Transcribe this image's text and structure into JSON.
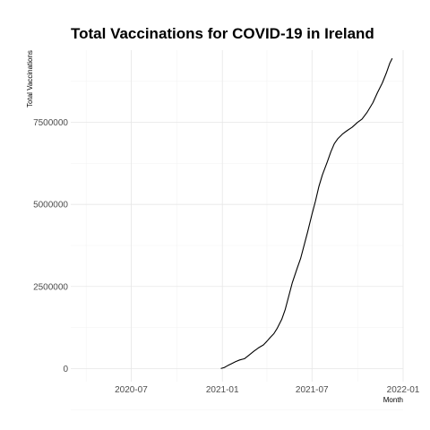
{
  "chart_data": {
    "type": "line",
    "title": "Total Vaccinations for COVID-19 in Ireland",
    "xlabel": "Month",
    "ylabel": "Total Vaccinations",
    "xlim": [
      "2020-03-01",
      "2022-01-01"
    ],
    "ylim": [
      -400000,
      9700000
    ],
    "x_ticks": [
      "2020-07",
      "2021-01",
      "2021-07",
      "2022-01"
    ],
    "y_ticks": [
      "0",
      "2500000",
      "5000000",
      "7500000"
    ],
    "grid": true,
    "series": [
      {
        "x": [
          "2020-12-29",
          "2021-01-05",
          "2021-01-12",
          "2021-01-20",
          "2021-01-28",
          "2021-02-05",
          "2021-02-15",
          "2021-02-25",
          "2021-03-05",
          "2021-03-15",
          "2021-03-25",
          "2021-04-01",
          "2021-04-08",
          "2021-04-15",
          "2021-04-22",
          "2021-05-01",
          "2021-05-08",
          "2021-05-15",
          "2021-05-22",
          "2021-06-01",
          "2021-06-08",
          "2021-06-15",
          "2021-06-22",
          "2021-07-01",
          "2021-07-08",
          "2021-07-15",
          "2021-07-22",
          "2021-08-01",
          "2021-08-08",
          "2021-08-15",
          "2021-08-22",
          "2021-09-01",
          "2021-09-10",
          "2021-09-20",
          "2021-10-01",
          "2021-10-10",
          "2021-10-20",
          "2021-11-01",
          "2021-11-10",
          "2021-11-20",
          "2021-11-28",
          "2021-12-05",
          "2021-12-10"
        ],
        "y": [
          0,
          30000,
          90000,
          150000,
          210000,
          260000,
          300000,
          420000,
          520000,
          630000,
          720000,
          830000,
          950000,
          1060000,
          1230000,
          1500000,
          1800000,
          2200000,
          2600000,
          3050000,
          3350000,
          3750000,
          4150000,
          4700000,
          5100000,
          5550000,
          5900000,
          6300000,
          6600000,
          6850000,
          7000000,
          7150000,
          7250000,
          7350000,
          7500000,
          7600000,
          7800000,
          8100000,
          8400000,
          8700000,
          9000000,
          9300000,
          9450000
        ]
      }
    ]
  }
}
